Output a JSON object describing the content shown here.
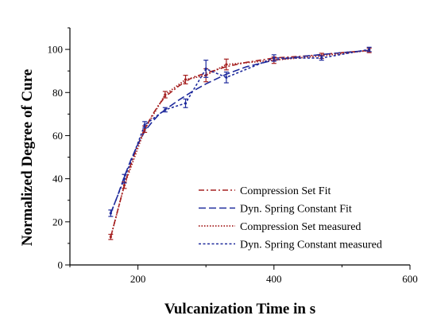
{
  "chart_data": {
    "type": "line",
    "title": "",
    "xlabel": "Vulcanization Time in s",
    "ylabel": "Normalized Degree of Cure",
    "xlim": [
      100,
      600
    ],
    "ylim": [
      0,
      110
    ],
    "xticks": [
      200,
      400,
      600
    ],
    "xticks_minor": [
      100,
      300,
      500
    ],
    "yticks": [
      0,
      20,
      40,
      60,
      80,
      100
    ],
    "yticks_minor": [
      10,
      30,
      50,
      70,
      90,
      110
    ],
    "grid": false,
    "legend_position": "bottom-right",
    "series": [
      {
        "name": "Compression Set Fit",
        "color": "#a52020",
        "dash": "dash-dot",
        "x": [
          160,
          170,
          180,
          190,
          200,
          210,
          220,
          230,
          240,
          260,
          280,
          300,
          330,
          360,
          400,
          450,
          500,
          540
        ],
        "y": [
          13,
          25,
          37,
          47,
          56,
          63,
          69,
          74,
          78,
          83,
          87,
          89,
          92,
          94,
          96,
          97,
          98.5,
          99.5
        ]
      },
      {
        "name": "Dyn. Spring Constant Fit",
        "color": "#1e2a9c",
        "dash": "dashed",
        "x": [
          160,
          170,
          180,
          190,
          200,
          210,
          220,
          230,
          240,
          260,
          280,
          300,
          330,
          360,
          400,
          450,
          500,
          540
        ],
        "y": [
          24,
          32,
          41,
          49,
          56,
          62,
          66,
          69.5,
          72,
          76.5,
          80.5,
          84,
          88.5,
          92,
          95,
          97,
          98.5,
          99.5
        ]
      },
      {
        "name": "Compression Set measured",
        "color": "#a52020",
        "dash": "dotted",
        "x": [
          160,
          180,
          210,
          240,
          270,
          300,
          330,
          400,
          470,
          540
        ],
        "y": [
          13,
          37,
          63,
          79,
          86,
          88,
          93,
          95,
          97,
          99.5
        ],
        "err": [
          1.2,
          1.5,
          1.5,
          1.5,
          2,
          3,
          2.5,
          1.5,
          1.2,
          1
        ]
      },
      {
        "name": "Dyn. Spring Constant measured",
        "color": "#1e2a9c",
        "dash": "short-dash",
        "x": [
          160,
          180,
          210,
          240,
          270,
          300,
          330,
          400,
          470,
          540
        ],
        "y": [
          24,
          40,
          65,
          72,
          75,
          91,
          87,
          96,
          96,
          100
        ],
        "err": [
          1.5,
          2,
          1.5,
          1,
          2,
          4,
          2.5,
          1.5,
          1,
          1
        ]
      }
    ]
  }
}
